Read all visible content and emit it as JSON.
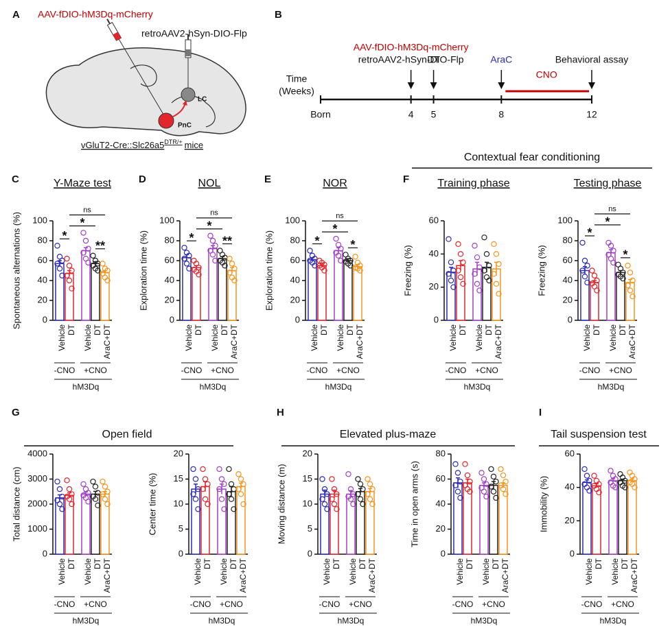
{
  "diagram": {
    "letter": "A",
    "virus1": "AAV-fDIO-hM3Dq-mCherry",
    "virus2": "retroAAV2-hSyn-DIO-Flp",
    "region1": "LC",
    "region2": "PnC",
    "mouse": "vGluT2-Cre::Slc26a5",
    "mouse_sup": "DTR/+",
    "mouse_suffix": "mice"
  },
  "timeline": {
    "letter": "B",
    "axis_label": [
      "Time",
      "(Weeks)"
    ],
    "xlim": [
      0,
      12
    ],
    "xticks": [
      {
        "value": 0,
        "label": "Born"
      },
      4,
      5,
      8,
      12
    ],
    "events": [
      {
        "week": 4,
        "labels": [
          "AAV-fDIO-hM3Dq-mCherry",
          "retroAAV2-hSyn-DIO-Flp"
        ],
        "colors": [
          "#c00000",
          "#111111"
        ]
      },
      {
        "week": 5,
        "labels": [
          "DT"
        ],
        "colors": [
          "#111111"
        ]
      },
      {
        "week": 8,
        "labels": [
          "AraC"
        ],
        "colors": [
          "#2a2ab4"
        ]
      },
      {
        "week": 12,
        "labels": [
          "Behavioral assay"
        ],
        "colors": [
          "#111111"
        ]
      }
    ],
    "period": {
      "label": "CNO",
      "range": [
        8,
        12
      ],
      "color": "#c00000"
    }
  },
  "headers": [
    "Contextual fear conditioning",
    "Open field",
    "Elevated plus-maze",
    "Tail suspension test"
  ],
  "chart_data": [
    {
      "type": "bar",
      "letter": "C",
      "title": "Y-Maze test",
      "ylabel": "Spontaneous alternations (%)",
      "categories": [
        "Vehicle",
        "DT",
        "Vehicle",
        "DT",
        "AraC+DT"
      ],
      "colors": [
        "#2a2aba",
        "#e3262c",
        "#a23fc8",
        "#222222",
        "#f7941d"
      ],
      "values": [
        57,
        47,
        70,
        57,
        48
      ],
      "errors": [
        3,
        3,
        3,
        2,
        2
      ],
      "points": [
        [
          75,
          64,
          60,
          57,
          52,
          45
        ],
        [
          62,
          55,
          50,
          45,
          40,
          32
        ],
        [
          88,
          80,
          72,
          68,
          62,
          58
        ],
        [
          65,
          60,
          57,
          55,
          52,
          50
        ],
        [
          57,
          52,
          50,
          47,
          43,
          40
        ]
      ],
      "ylim": [
        0,
        100
      ],
      "yticks": [
        0,
        20,
        40,
        60,
        80,
        100
      ],
      "groups": [
        {
          "label": "-CNO",
          "span": [
            0,
            1
          ]
        },
        {
          "label": "+CNO",
          "span": [
            2,
            4
          ]
        }
      ],
      "genotype": "hM3Dq",
      "significance": [
        {
          "label": "*",
          "pair": [
            0,
            1
          ]
        },
        {
          "label": "**",
          "pair": [
            3,
            4
          ]
        },
        {
          "label": "*",
          "pair": [
            1,
            3
          ]
        },
        {
          "label": "ns",
          "pair": [
            1,
            4
          ]
        }
      ]
    },
    {
      "type": "bar",
      "letter": "D",
      "title": "NOL",
      "ylabel": "Exploration time (%)",
      "categories": [
        "Vehicle",
        "DT",
        "Vehicle",
        "DT",
        "AraC+DT"
      ],
      "colors": [
        "#2a2aba",
        "#e3262c",
        "#a23fc8",
        "#222222",
        "#f7941d"
      ],
      "values": [
        63,
        53,
        72,
        62,
        50
      ],
      "errors": [
        3,
        2,
        3,
        2,
        3
      ],
      "points": [
        [
          73,
          68,
          65,
          62,
          57,
          52
        ],
        [
          60,
          57,
          53,
          51,
          49,
          46
        ],
        [
          85,
          80,
          75,
          70,
          66,
          60
        ],
        [
          70,
          66,
          63,
          60,
          58,
          55
        ],
        [
          62,
          57,
          52,
          48,
          43,
          40
        ]
      ],
      "ylim": [
        0,
        100
      ],
      "yticks": [
        0,
        20,
        40,
        60,
        80,
        100
      ],
      "groups": [
        {
          "label": "-CNO",
          "span": [
            0,
            1
          ]
        },
        {
          "label": "+CNO",
          "span": [
            2,
            4
          ]
        }
      ],
      "genotype": "hM3Dq",
      "significance": [
        {
          "label": "*",
          "pair": [
            0,
            1
          ]
        },
        {
          "label": "**",
          "pair": [
            3,
            4
          ]
        },
        {
          "label": "*",
          "pair": [
            1,
            3
          ]
        },
        {
          "label": "ns",
          "pair": [
            1,
            4
          ]
        }
      ]
    },
    {
      "type": "bar",
      "letter": "E",
      "title": "NOR",
      "ylabel": "Exploration time (%)",
      "categories": [
        "Vehicle",
        "DT",
        "Vehicle",
        "DT",
        "AraC+DT"
      ],
      "colors": [
        "#2a2aba",
        "#e3262c",
        "#a23fc8",
        "#222222",
        "#f7941d"
      ],
      "values": [
        61,
        55,
        70,
        60,
        54
      ],
      "errors": [
        2,
        2,
        3,
        2,
        2
      ],
      "points": [
        [
          70,
          65,
          62,
          60,
          58,
          55
        ],
        [
          60,
          58,
          56,
          55,
          53,
          50
        ],
        [
          82,
          76,
          72,
          68,
          65,
          60
        ],
        [
          66,
          62,
          60,
          59,
          57,
          55
        ],
        [
          64,
          58,
          55,
          53,
          52,
          50
        ]
      ],
      "ylim": [
        0,
        100
      ],
      "yticks": [
        0,
        20,
        40,
        60,
        80,
        100
      ],
      "groups": [
        {
          "label": "-CNO",
          "span": [
            0,
            1
          ]
        },
        {
          "label": "+CNO",
          "span": [
            2,
            4
          ]
        }
      ],
      "genotype": "hM3Dq",
      "significance": [
        {
          "label": "*",
          "pair": [
            0,
            1
          ]
        },
        {
          "label": "*",
          "pair": [
            3,
            4
          ]
        },
        {
          "label": "*",
          "pair": [
            1,
            3
          ]
        },
        {
          "label": "ns",
          "pair": [
            1,
            4
          ]
        }
      ]
    },
    {
      "type": "bar",
      "letter": "F",
      "title": "Training phase",
      "ylabel": "Freezing (%)",
      "categories": [
        "Vehicle",
        "DT",
        "Vehicle",
        "DT",
        "AraC+DT"
      ],
      "colors": [
        "#2a2aba",
        "#e3262c",
        "#a23fc8",
        "#222222",
        "#f7941d"
      ],
      "values": [
        29,
        33,
        31,
        32,
        31
      ],
      "errors": [
        3,
        3,
        4,
        3,
        4
      ],
      "points": [
        [
          49,
          35,
          30,
          28,
          24,
          20
        ],
        [
          46,
          40,
          35,
          30,
          26,
          22
        ],
        [
          45,
          38,
          32,
          28,
          22,
          18
        ],
        [
          50,
          40,
          33,
          30,
          26,
          24
        ],
        [
          46,
          40,
          34,
          28,
          22,
          16
        ]
      ],
      "ylim": [
        0,
        60
      ],
      "yticks": [
        0,
        20,
        40,
        60
      ],
      "groups": [
        {
          "label": "-CNO",
          "span": [
            0,
            1
          ]
        },
        {
          "label": "+CNO",
          "span": [
            2,
            4
          ]
        }
      ],
      "genotype": "hM3Dq",
      "significance": []
    },
    {
      "type": "bar",
      "title": "Testing phase",
      "ylabel": "Freezing (%)",
      "categories": [
        "Vehicle",
        "DT",
        "Vehicle",
        "DT",
        "AraC+DT"
      ],
      "colors": [
        "#2a2aba",
        "#e3262c",
        "#a23fc8",
        "#222222",
        "#f7941d"
      ],
      "values": [
        50,
        38,
        68,
        48,
        38
      ],
      "errors": [
        4,
        2,
        3,
        2,
        3
      ],
      "points": [
        [
          78,
          60,
          55,
          50,
          44,
          38
        ],
        [
          50,
          45,
          40,
          37,
          34,
          30
        ],
        [
          78,
          75,
          70,
          66,
          62,
          58
        ],
        [
          56,
          52,
          48,
          46,
          44,
          42
        ],
        [
          55,
          48,
          40,
          35,
          30,
          24
        ]
      ],
      "ylim": [
        0,
        100
      ],
      "yticks": [
        0,
        20,
        40,
        60,
        80,
        100
      ],
      "groups": [
        {
          "label": "-CNO",
          "span": [
            0,
            1
          ]
        },
        {
          "label": "+CNO",
          "span": [
            2,
            4
          ]
        }
      ],
      "genotype": "hM3Dq",
      "significance": [
        {
          "label": "*",
          "pair": [
            0,
            1
          ]
        },
        {
          "label": "*",
          "pair": [
            3,
            4
          ]
        },
        {
          "label": "*",
          "pair": [
            1,
            3
          ]
        },
        {
          "label": "ns",
          "pair": [
            1,
            4
          ]
        }
      ]
    },
    {
      "type": "bar",
      "letter": "G",
      "ylabel": "Total distance (cm)",
      "categories": [
        "Vehicle",
        "DT",
        "Vehicle",
        "DT",
        "AraC+DT"
      ],
      "colors": [
        "#2a2aba",
        "#e3262c",
        "#a23fc8",
        "#222222",
        "#f7941d"
      ],
      "values": [
        2250,
        2350,
        2400,
        2400,
        2400
      ],
      "errors": [
        120,
        100,
        90,
        110,
        100
      ],
      "points": [
        [
          2900,
          2600,
          2300,
          2150,
          2000,
          1800
        ],
        [
          2950,
          2600,
          2400,
          2300,
          2200,
          2000
        ],
        [
          2800,
          2600,
          2450,
          2350,
          2250,
          2100
        ],
        [
          2900,
          2700,
          2450,
          2300,
          2200,
          1950
        ],
        [
          2900,
          2700,
          2500,
          2400,
          2200,
          2000
        ]
      ],
      "ylim": [
        0,
        4000
      ],
      "yticks": [
        0,
        1000,
        2000,
        3000,
        4000
      ],
      "groups": [
        {
          "label": "-CNO",
          "span": [
            0,
            1
          ]
        },
        {
          "label": "+CNO",
          "span": [
            2,
            4
          ]
        }
      ],
      "genotype": "hM3Dq",
      "significance": []
    },
    {
      "type": "bar",
      "ylabel": "Center time (%)",
      "categories": [
        "Vehicle",
        "DT",
        "Vehicle",
        "DT",
        "AraC+DT"
      ],
      "colors": [
        "#2a2aba",
        "#e3262c",
        "#a23fc8",
        "#222222",
        "#f7941d"
      ],
      "values": [
        13,
        13.5,
        13,
        12.5,
        13.5
      ],
      "errors": [
        1,
        1,
        1,
        1,
        0.7
      ],
      "points": [
        [
          17,
          15,
          13,
          12,
          11,
          9
        ],
        [
          17,
          15,
          14,
          13,
          11,
          10
        ],
        [
          17,
          15,
          14,
          13,
          11,
          9
        ],
        [
          17,
          14,
          13,
          12,
          11,
          9
        ],
        [
          16,
          15,
          14,
          13,
          12,
          10
        ]
      ],
      "ylim": [
        0,
        20
      ],
      "yticks": [
        0,
        5,
        10,
        15,
        20
      ],
      "groups": [
        {
          "label": "-CNO",
          "span": [
            0,
            1
          ]
        },
        {
          "label": "+CNO",
          "span": [
            2,
            4
          ]
        }
      ],
      "genotype": "hM3Dq",
      "significance": []
    },
    {
      "type": "bar",
      "letter": "H",
      "ylabel": "Moving distance (m)",
      "categories": [
        "Vehicle",
        "DT",
        "Vehicle",
        "DT",
        "AraC+DT"
      ],
      "colors": [
        "#2a2aba",
        "#e3262c",
        "#a23fc8",
        "#222222",
        "#f7941d"
      ],
      "values": [
        12,
        12,
        12,
        12.5,
        12.5
      ],
      "errors": [
        0.8,
        0.8,
        0.7,
        0.6,
        0.6
      ],
      "points": [
        [
          15,
          13,
          12,
          11,
          10,
          9
        ],
        [
          15,
          13,
          12,
          11,
          10,
          9
        ],
        [
          16,
          13,
          12,
          11.5,
          11,
          10
        ],
        [
          15,
          14,
          13,
          12,
          11,
          10
        ],
        [
          15,
          14,
          13,
          12,
          11,
          10
        ]
      ],
      "ylim": [
        0,
        20
      ],
      "yticks": [
        0,
        5,
        10,
        15,
        20
      ],
      "groups": [
        {
          "label": "-CNO",
          "span": [
            0,
            1
          ]
        },
        {
          "label": "+CNO",
          "span": [
            2,
            4
          ]
        }
      ],
      "genotype": "hM3Dq",
      "significance": []
    },
    {
      "type": "bar",
      "ylabel": "Time in open arms (s)",
      "categories": [
        "Vehicle",
        "DT",
        "Vehicle",
        "DT",
        "AraC+DT"
      ],
      "colors": [
        "#2a2aba",
        "#e3262c",
        "#a23fc8",
        "#222222",
        "#f7941d"
      ],
      "values": [
        57,
        57,
        55,
        55,
        55
      ],
      "errors": [
        4,
        3,
        2,
        3,
        2
      ],
      "points": [
        [
          72,
          65,
          58,
          55,
          50,
          45
        ],
        [
          72,
          63,
          58,
          55,
          52,
          50
        ],
        [
          65,
          60,
          56,
          53,
          50,
          46
        ],
        [
          68,
          62,
          58,
          54,
          50,
          45
        ],
        [
          68,
          63,
          58,
          55,
          52,
          48
        ]
      ],
      "ylim": [
        0,
        80
      ],
      "yticks": [
        0,
        20,
        40,
        60,
        80
      ],
      "groups": [
        {
          "label": "-CNO",
          "span": [
            0,
            1
          ]
        },
        {
          "label": "+CNO",
          "span": [
            2,
            4
          ]
        }
      ],
      "genotype": "hM3Dq",
      "significance": []
    },
    {
      "type": "bar",
      "letter": "I",
      "ylabel": "Immobility (%)",
      "categories": [
        "Vehicle",
        "DT",
        "Vehicle",
        "DT",
        "AraC+DT"
      ],
      "colors": [
        "#2a2aba",
        "#e3262c",
        "#a23fc8",
        "#222222",
        "#f7941d"
      ],
      "values": [
        43,
        41,
        44,
        44,
        44
      ],
      "errors": [
        1.5,
        1.2,
        1.2,
        1,
        1
      ],
      "points": [
        [
          51,
          47,
          44,
          42,
          40,
          38
        ],
        [
          47,
          44,
          42,
          41,
          39,
          37
        ],
        [
          50,
          47,
          45,
          43,
          41,
          40
        ],
        [
          48,
          46,
          44,
          43,
          41,
          40
        ],
        [
          49,
          47,
          45,
          43,
          42,
          40
        ]
      ],
      "ylim": [
        0,
        60
      ],
      "yticks": [
        0,
        20,
        40,
        60
      ],
      "groups": [
        {
          "label": "-CNO",
          "span": [
            0,
            1
          ]
        },
        {
          "label": "+CNO",
          "span": [
            2,
            4
          ]
        }
      ],
      "genotype": "hM3Dq",
      "significance": []
    }
  ]
}
